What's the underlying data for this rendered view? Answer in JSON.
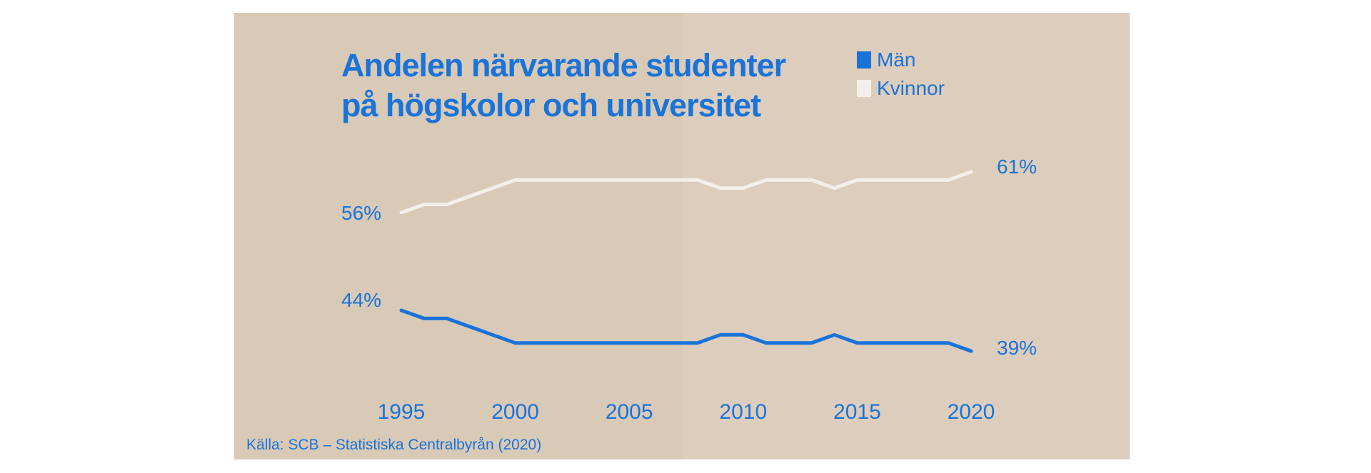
{
  "colors": {
    "men": "#1a73d9",
    "women": "#f4efea",
    "background": "#d9c9b7",
    "text": "#1a73d9"
  },
  "chart_data": {
    "type": "line",
    "title": "Andelen närvarande studenter på högskolor och universitet",
    "title_lines": [
      "Andelen närvarande studenter",
      "på högskolor och universitet"
    ],
    "x": [
      1995,
      1996,
      1997,
      1998,
      1999,
      2000,
      2001,
      2002,
      2003,
      2004,
      2005,
      2006,
      2007,
      2008,
      2009,
      2010,
      2011,
      2012,
      2013,
      2014,
      2015,
      2016,
      2017,
      2018,
      2019,
      2020
    ],
    "series": [
      {
        "name": "Män",
        "values": [
          44,
          43,
          43,
          42,
          41,
          40,
          40,
          40,
          40,
          40,
          40,
          40,
          40,
          40,
          41,
          41,
          40,
          40,
          40,
          41,
          40,
          40,
          40,
          40,
          40,
          39
        ]
      },
      {
        "name": "Kvinnor",
        "values": [
          56,
          57,
          57,
          58,
          59,
          60,
          60,
          60,
          60,
          60,
          60,
          60,
          60,
          60,
          59,
          59,
          60,
          60,
          60,
          59,
          60,
          60,
          60,
          60,
          60,
          61
        ]
      }
    ],
    "end_labels": {
      "men_start": "44%",
      "men_end": "39%",
      "women_start": "56%",
      "women_end": "61%"
    },
    "x_ticks": [
      "1995",
      "2000",
      "2005",
      "2010",
      "2015",
      "2020"
    ],
    "xlabel": "",
    "ylabel": "",
    "grid": false,
    "legend_position": "top-right",
    "source": "Källa: SCB – Statistiska Centralbyrån (2020)"
  }
}
